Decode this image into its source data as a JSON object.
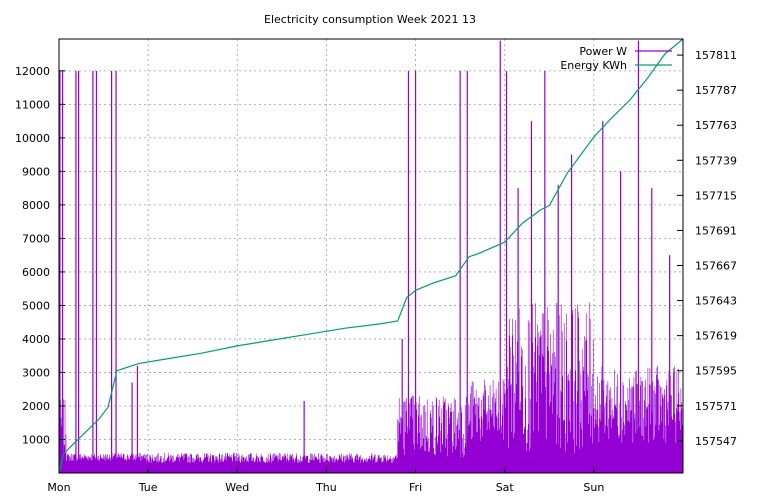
{
  "chart_data": {
    "type": "line",
    "title": "Electricity consumption Week 2021 13",
    "xlabel": "",
    "x_ticks": [
      "Mon",
      "Tue",
      "Wed",
      "Thu",
      "Fri",
      "Sat",
      "Sun"
    ],
    "xlim": [
      0,
      7
    ],
    "y_left": {
      "ticks": [
        1000,
        2000,
        3000,
        4000,
        5000,
        6000,
        7000,
        8000,
        9000,
        10000,
        11000,
        12000
      ],
      "range": [
        0,
        12950
      ]
    },
    "y_right": {
      "ticks": [
        157547,
        157571,
        157595,
        157619,
        157643,
        157667,
        157691,
        157715,
        157739,
        157763,
        157787,
        157811
      ],
      "range": [
        157525,
        157822
      ]
    },
    "grid": true,
    "legend_position": "top-right",
    "colors": {
      "power": "#9400d3",
      "energy": "#009e73"
    },
    "series": [
      {
        "name": "Power W",
        "axis": "left",
        "style": "impulses",
        "segments": [
          {
            "x": [
              0.0,
              0.08
            ],
            "low": 500,
            "high": 2200
          },
          {
            "x": [
              0.08,
              0.95
            ],
            "low": 350,
            "high": 600
          },
          {
            "x": [
              0.95,
              3.8
            ],
            "low": 300,
            "high": 600
          },
          {
            "x": [
              3.8,
              4.6
            ],
            "low": 450,
            "high": 2400
          },
          {
            "x": [
              4.6,
              5.0
            ],
            "low": 850,
            "high": 2800
          },
          {
            "x": [
              5.0,
              6.0
            ],
            "low": 600,
            "high": 5100
          },
          {
            "x": [
              6.0,
              7.0
            ],
            "low": 900,
            "high": 3200
          }
        ],
        "spikes": [
          {
            "x": 0.01,
            "y": 12000
          },
          {
            "x": 0.04,
            "y": 12000
          },
          {
            "x": 0.19,
            "y": 12000
          },
          {
            "x": 0.22,
            "y": 12000
          },
          {
            "x": 0.38,
            "y": 12000
          },
          {
            "x": 0.42,
            "y": 12000
          },
          {
            "x": 0.59,
            "y": 12000
          },
          {
            "x": 0.64,
            "y": 12000
          },
          {
            "x": 0.82,
            "y": 2700
          },
          {
            "x": 0.88,
            "y": 3200
          },
          {
            "x": 2.75,
            "y": 2150
          },
          {
            "x": 3.85,
            "y": 4000
          },
          {
            "x": 3.92,
            "y": 12000
          },
          {
            "x": 4.0,
            "y": 12000
          },
          {
            "x": 4.5,
            "y": 12000
          },
          {
            "x": 4.58,
            "y": 12000
          },
          {
            "x": 4.95,
            "y": 12900
          },
          {
            "x": 5.02,
            "y": 12000
          },
          {
            "x": 5.15,
            "y": 8500
          },
          {
            "x": 5.3,
            "y": 10500
          },
          {
            "x": 5.45,
            "y": 12000
          },
          {
            "x": 5.6,
            "y": 8600
          },
          {
            "x": 5.75,
            "y": 9500
          },
          {
            "x": 6.1,
            "y": 10500
          },
          {
            "x": 6.3,
            "y": 9000
          },
          {
            "x": 6.5,
            "y": 12900
          },
          {
            "x": 6.65,
            "y": 8500
          },
          {
            "x": 6.85,
            "y": 6500
          }
        ]
      },
      {
        "name": "Energy KWh",
        "axis": "right",
        "style": "line",
        "x": [
          0.0,
          0.05,
          0.18,
          0.3,
          0.45,
          0.55,
          0.65,
          0.9,
          1.2,
          1.6,
          2.0,
          2.4,
          2.8,
          3.2,
          3.6,
          3.8,
          3.9,
          4.0,
          4.2,
          4.45,
          4.6,
          4.7,
          5.0,
          5.2,
          5.4,
          5.5,
          5.7,
          6.0,
          6.2,
          6.4,
          6.6,
          6.8,
          7.0
        ],
        "y": [
          157525,
          157538,
          157546,
          157553,
          157562,
          157570,
          157595,
          157600,
          157603,
          157607,
          157612,
          157616,
          157620,
          157624,
          157627,
          157629,
          157645,
          157650,
          157655,
          157660,
          157673,
          157675,
          157683,
          157696,
          157705,
          157708,
          157730,
          157755,
          157768,
          157780,
          157795,
          157812,
          157822
        ]
      }
    ]
  }
}
